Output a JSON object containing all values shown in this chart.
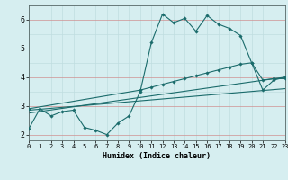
{
  "xlabel": "Humidex (Indice chaleur)",
  "bg_color": "#d6eef0",
  "grid_color_minor": "#c0dde0",
  "grid_color_red": "#d09090",
  "line_color": "#1a6b6b",
  "xlim": [
    0,
    23
  ],
  "ylim": [
    1.8,
    6.5
  ],
  "yticks": [
    2,
    3,
    4,
    5,
    6
  ],
  "xticks": [
    0,
    1,
    2,
    3,
    4,
    5,
    6,
    7,
    8,
    9,
    10,
    11,
    12,
    13,
    14,
    15,
    16,
    17,
    18,
    19,
    20,
    21,
    22,
    23
  ],
  "series": [
    {
      "x": [
        0,
        1,
        2,
        3,
        4,
        5,
        6,
        7,
        8,
        9,
        10,
        11,
        12,
        13,
        14,
        15,
        16,
        17,
        18,
        19,
        20,
        21,
        22,
        23
      ],
      "y": [
        2.2,
        2.9,
        2.65,
        2.8,
        2.85,
        2.25,
        2.15,
        2.0,
        2.4,
        2.65,
        3.5,
        5.2,
        6.2,
        5.9,
        6.05,
        5.6,
        6.15,
        5.85,
        5.7,
        5.45,
        4.5,
        3.9,
        3.95,
        3.95
      ],
      "has_markers": true
    },
    {
      "x": [
        0,
        10,
        11,
        12,
        13,
        14,
        15,
        16,
        17,
        18,
        19,
        20,
        21,
        22,
        23
      ],
      "y": [
        2.9,
        3.55,
        3.65,
        3.75,
        3.85,
        3.95,
        4.05,
        4.15,
        4.25,
        4.35,
        4.45,
        4.5,
        3.55,
        3.9,
        4.0
      ],
      "has_markers": true
    },
    {
      "x": [
        0,
        23
      ],
      "y": [
        2.85,
        3.6
      ],
      "has_markers": false
    },
    {
      "x": [
        0,
        23
      ],
      "y": [
        2.75,
        4.0
      ],
      "has_markers": false
    }
  ]
}
